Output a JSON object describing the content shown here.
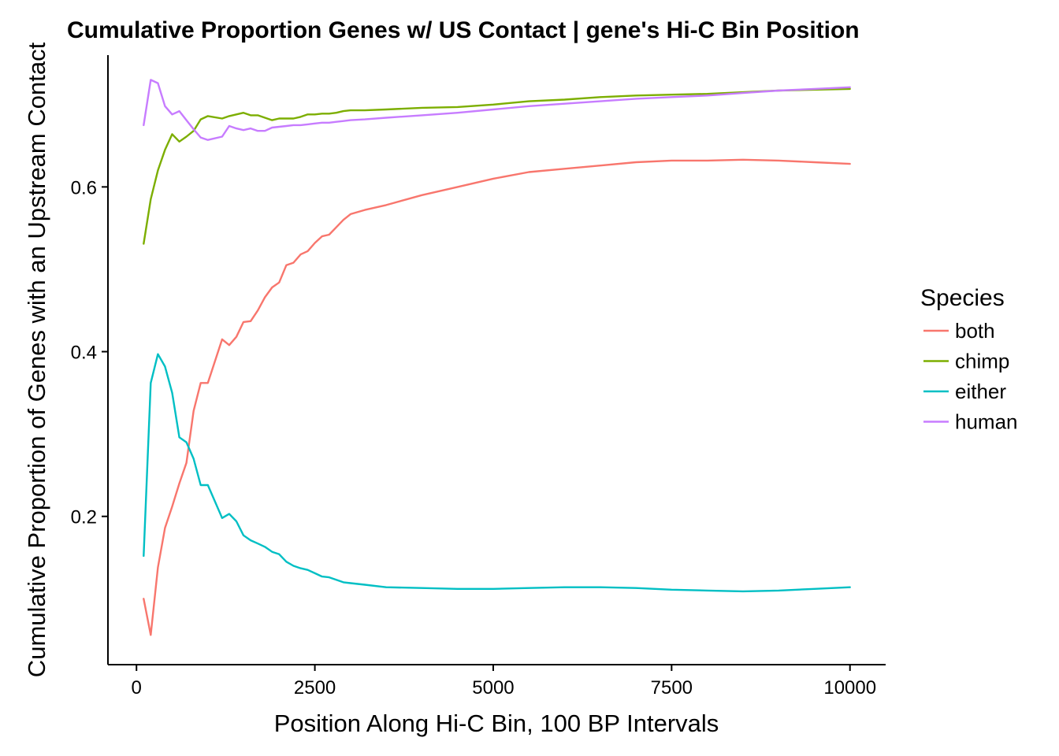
{
  "chart_data": {
    "type": "line",
    "title": "Cumulative Proportion Genes w/ US Contact | gene's Hi-C Bin Position",
    "xlabel": "Position Along Hi-C Bin, 100 BP Intervals",
    "ylabel": "Cumulative Proportion of Genes with an Upstream Contact",
    "xlim": [
      -400,
      10500
    ],
    "ylim": [
      0.02,
      0.76
    ],
    "x_ticks": [
      0,
      2500,
      5000,
      7500,
      10000
    ],
    "x_tick_labels": [
      "0",
      "2500",
      "5000",
      "7500",
      "10000"
    ],
    "y_ticks": [
      0.2,
      0.4,
      0.6
    ],
    "y_tick_labels": [
      "0.2",
      "0.4",
      "0.6"
    ],
    "grid": false,
    "legend": {
      "title": "Species",
      "position": "right"
    },
    "x": [
      100,
      200,
      300,
      400,
      500,
      600,
      700,
      800,
      900,
      1000,
      1200,
      1300,
      1400,
      1500,
      1600,
      1700,
      1800,
      1900,
      2000,
      2100,
      2200,
      2300,
      2400,
      2500,
      2600,
      2700,
      2800,
      2900,
      3000,
      3200,
      3500,
      4000,
      4500,
      5000,
      5500,
      6000,
      6500,
      7000,
      7500,
      8000,
      8500,
      9000,
      9500,
      10000
    ],
    "series": [
      {
        "name": "both",
        "color": "#F8766D",
        "values": [
          0.1,
          0.056,
          0.138,
          0.186,
          0.212,
          0.24,
          0.265,
          0.328,
          0.362,
          0.362,
          0.415,
          0.408,
          0.418,
          0.436,
          0.437,
          0.45,
          0.466,
          0.478,
          0.484,
          0.505,
          0.508,
          0.518,
          0.522,
          0.532,
          0.54,
          0.542,
          0.551,
          0.56,
          0.567,
          0.572,
          0.578,
          0.59,
          0.6,
          0.61,
          0.618,
          0.622,
          0.626,
          0.63,
          0.632,
          0.632,
          0.633,
          0.632,
          0.63,
          0.628
        ]
      },
      {
        "name": "chimp",
        "color": "#7CAE00",
        "values": [
          0.531,
          0.585,
          0.62,
          0.645,
          0.664,
          0.655,
          0.661,
          0.668,
          0.682,
          0.686,
          0.683,
          0.686,
          0.688,
          0.69,
          0.687,
          0.687,
          0.684,
          0.681,
          0.683,
          0.683,
          0.683,
          0.685,
          0.688,
          0.688,
          0.689,
          0.689,
          0.69,
          0.692,
          0.693,
          0.693,
          0.694,
          0.696,
          0.697,
          0.7,
          0.704,
          0.706,
          0.709,
          0.711,
          0.712,
          0.713,
          0.715,
          0.717,
          0.718,
          0.719
        ]
      },
      {
        "name": "either",
        "color": "#00BFC4",
        "values": [
          0.152,
          0.362,
          0.397,
          0.382,
          0.35,
          0.296,
          0.29,
          0.27,
          0.238,
          0.238,
          0.198,
          0.203,
          0.194,
          0.177,
          0.171,
          0.167,
          0.163,
          0.157,
          0.154,
          0.145,
          0.14,
          0.137,
          0.135,
          0.131,
          0.127,
          0.126,
          0.123,
          0.12,
          0.119,
          0.117,
          0.114,
          0.113,
          0.112,
          0.112,
          0.113,
          0.114,
          0.114,
          0.113,
          0.111,
          0.11,
          0.109,
          0.11,
          0.112,
          0.114
        ]
      },
      {
        "name": "human",
        "color": "#C77CFF",
        "values": [
          0.675,
          0.73,
          0.726,
          0.698,
          0.688,
          0.692,
          0.681,
          0.67,
          0.66,
          0.657,
          0.661,
          0.674,
          0.671,
          0.669,
          0.671,
          0.668,
          0.668,
          0.672,
          0.673,
          0.674,
          0.675,
          0.675,
          0.676,
          0.677,
          0.678,
          0.678,
          0.679,
          0.68,
          0.681,
          0.682,
          0.684,
          0.687,
          0.69,
          0.694,
          0.698,
          0.701,
          0.704,
          0.707,
          0.709,
          0.711,
          0.714,
          0.717,
          0.719,
          0.721
        ]
      }
    ]
  }
}
